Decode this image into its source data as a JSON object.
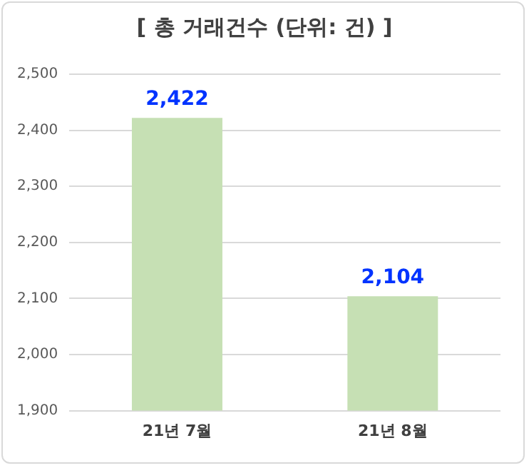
{
  "chart_data": {
    "type": "bar",
    "title": "[ 총 거래건수 (단위: 건) ]",
    "categories": [
      "21년 7월",
      "21년 8월"
    ],
    "values": [
      2422,
      2104
    ],
    "color": "#c6e0b4",
    "value_labels": [
      "2,422",
      "2,104"
    ],
    "ylim": [
      1900,
      2500
    ],
    "yticks": [
      {
        "value": 1900,
        "label": "1,900"
      },
      {
        "value": 2000,
        "label": "2,000"
      },
      {
        "value": 2100,
        "label": "2,100"
      },
      {
        "value": 2200,
        "label": "2,200"
      },
      {
        "value": 2300,
        "label": "2,300"
      },
      {
        "value": 2400,
        "label": "2,400"
      },
      {
        "value": 2500,
        "label": "2,500"
      }
    ],
    "grid": "y",
    "legend": false
  }
}
